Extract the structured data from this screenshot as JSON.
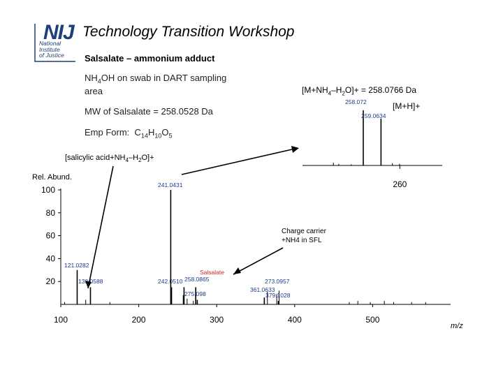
{
  "logo": {
    "letters": "NIJ",
    "lines": [
      "National",
      "Institute",
      "of Justice"
    ]
  },
  "title": "Technology Transition Workshop",
  "subtitle": "Salsalate – ammonium adduct",
  "notes": {
    "swab_line1": "NH4OH on swab in DART sampling",
    "swab_line2": "area",
    "mw": "MW of Salsalate = 258.0528 Da",
    "emp_prefix": "Emp Form:",
    "emp_formula": "C14H10O5"
  },
  "annotations": {
    "inset_formula": "[M+NH4–H2O]+ = 258.0766 Da",
    "inset_mh": "[M+H]+",
    "salicylic": "[salicylic acid+NH4–H2O]+",
    "charge_line1": "Charge carrier",
    "charge_line2": "+NH4 in SFL",
    "salsalate_tag": "Salsalate"
  },
  "colors": {
    "logo": "#1f3f7a",
    "peak_label": "#1a3a8a",
    "salsalate_tag": "#cc2222",
    "axis": "#000000"
  },
  "chart_data": [
    {
      "type": "bar",
      "ylabel": "Rel. Abund.",
      "xlabel": "m/z",
      "xlim": [
        100,
        600
      ],
      "ylim": [
        0,
        100
      ],
      "xticks": [
        100,
        200,
        300,
        400,
        500
      ],
      "yticks": [
        20,
        40,
        60,
        80,
        100
      ],
      "ytick_labels": [
        "20",
        "40",
        "60",
        "80",
        "100"
      ],
      "peaks": [
        {
          "x": 121.0282,
          "y": 30,
          "label": "121.0282"
        },
        {
          "x": 138.0588,
          "y": 15,
          "label": "138.0588"
        },
        {
          "x": 242.051,
          "y": 15,
          "label": "242.0510"
        },
        {
          "x": 241.0431,
          "y": 100,
          "label": "241.0431"
        },
        {
          "x": 258.0865,
          "y": 15,
          "label": "258.0865"
        },
        {
          "x": 275.098,
          "y": 4,
          "label": "275.098"
        },
        {
          "x": 273.0957,
          "y": 15,
          "label": "273.0957"
        },
        {
          "x": 361.0633,
          "y": 6,
          "label": "361.0633"
        },
        {
          "x": 379.1028,
          "y": 3,
          "label": "379.1028"
        }
      ],
      "minor_peaks": [
        {
          "x": 105,
          "y": 2
        },
        {
          "x": 132,
          "y": 4
        },
        {
          "x": 163,
          "y": 2
        },
        {
          "x": 257,
          "y": 8
        },
        {
          "x": 262,
          "y": 5
        },
        {
          "x": 270,
          "y": 3
        },
        {
          "x": 365,
          "y": 11
        },
        {
          "x": 377,
          "y": 9
        },
        {
          "x": 380,
          "y": 12
        },
        {
          "x": 470,
          "y": 2
        },
        {
          "x": 481,
          "y": 3
        },
        {
          "x": 497,
          "y": 2
        },
        {
          "x": 515,
          "y": 3
        },
        {
          "x": 527,
          "y": 2
        },
        {
          "x": 550,
          "y": 2
        },
        {
          "x": 568,
          "y": 2
        }
      ]
    },
    {
      "type": "bar",
      "title": "inset",
      "xticks": [
        260
      ],
      "xtick_labels": [
        "260"
      ],
      "peaks": [
        {
          "x": 258.072,
          "y": 100,
          "label": "258.072"
        },
        {
          "x": 259.0634,
          "y": 85,
          "label": "259.0634"
        }
      ],
      "minor_peaks": [
        {
          "x": 256.4,
          "y": 5
        },
        {
          "x": 256.7,
          "y": 3
        },
        {
          "x": 257.4,
          "y": 2
        },
        {
          "x": 259.7,
          "y": 4
        },
        {
          "x": 260.1,
          "y": 3
        }
      ]
    }
  ]
}
